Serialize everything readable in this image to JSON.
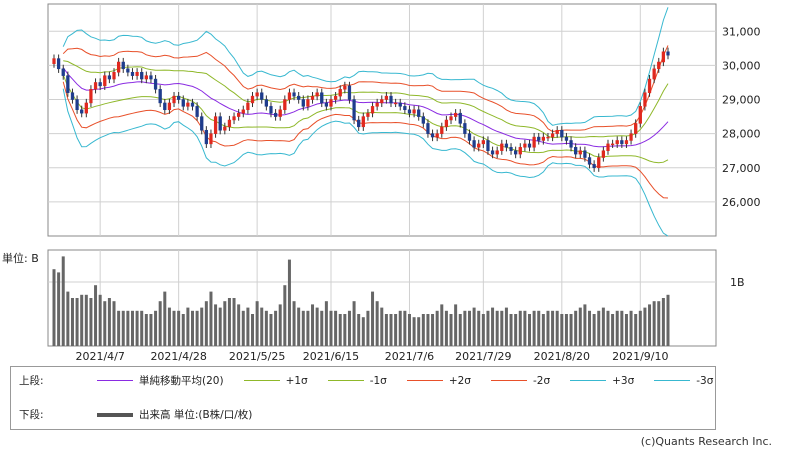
{
  "chart_data": [
    {
      "type": "candlestick",
      "x_ticks": [
        "2021/4/7",
        "2021/4/28",
        "2021/5/25",
        "2021/6/15",
        "2021/7/6",
        "2021/7/29",
        "2021/8/20",
        "2021/9/10"
      ],
      "y_ticks": [
        "31,000",
        "30,000",
        "29,000",
        "28,000",
        "27,000",
        "26,000"
      ],
      "ylim": [
        25000,
        31800
      ],
      "grid": true,
      "series": [
        {
          "name": "単純移動平均(20)",
          "color": "#8a2be2"
        },
        {
          "name": "+1σ",
          "color": "#8fb82a"
        },
        {
          "name": "-1σ",
          "color": "#8fb82a"
        },
        {
          "name": "+2σ",
          "color": "#e8502a"
        },
        {
          "name": "-2σ",
          "color": "#e8502a"
        },
        {
          "name": "+3σ",
          "color": "#38b8d0"
        },
        {
          "name": "-3σ",
          "color": "#38b8d0"
        }
      ],
      "close": [
        30200,
        29900,
        29700,
        29200,
        29000,
        28700,
        28600,
        28900,
        29300,
        29500,
        29400,
        29700,
        29600,
        29800,
        30100,
        29900,
        29800,
        29700,
        29800,
        29600,
        29700,
        29600,
        29300,
        28900,
        28700,
        28900,
        29100,
        29000,
        28800,
        28900,
        28800,
        28500,
        28100,
        27700,
        28000,
        28500,
        28100,
        28200,
        28400,
        28500,
        28600,
        28700,
        28900,
        29100,
        29200,
        29000,
        28800,
        28600,
        28500,
        28700,
        29000,
        29200,
        29100,
        29000,
        28800,
        29000,
        29100,
        29200,
        28900,
        28800,
        29000,
        29100,
        29300,
        29400,
        29000,
        28400,
        28200,
        28500,
        28600,
        28800,
        28900,
        29000,
        29100,
        28900,
        28900,
        28800,
        28700,
        28600,
        28700,
        28500,
        28300,
        28000,
        27900,
        28000,
        28200,
        28400,
        28500,
        28600,
        28300,
        28000,
        27800,
        27600,
        27700,
        27800,
        27500,
        27400,
        27500,
        27700,
        27600,
        27500,
        27400,
        27600,
        27700,
        27600,
        27900,
        27800,
        27900,
        27900,
        28000,
        28100,
        27900,
        27800,
        27600,
        27400,
        27500,
        27300,
        27100,
        27000,
        27300,
        27500,
        27700,
        27700,
        27800,
        27700,
        27800,
        28000,
        28300,
        28800,
        29200,
        29600,
        29900,
        30100,
        30400,
        30300
      ]
    },
    {
      "type": "bar",
      "title": "単位: B",
      "y_tick": "1B",
      "values": [
        1.2,
        1.15,
        1.4,
        0.85,
        0.75,
        0.75,
        0.8,
        0.8,
        0.75,
        0.95,
        0.8,
        0.7,
        0.75,
        0.7,
        0.55,
        0.55,
        0.55,
        0.55,
        0.55,
        0.55,
        0.5,
        0.5,
        0.55,
        0.7,
        0.85,
        0.6,
        0.55,
        0.55,
        0.5,
        0.6,
        0.55,
        0.55,
        0.6,
        0.7,
        0.85,
        0.65,
        0.6,
        0.7,
        0.75,
        0.75,
        0.65,
        0.55,
        0.6,
        0.5,
        0.7,
        0.6,
        0.55,
        0.5,
        0.55,
        0.65,
        0.95,
        1.35,
        0.7,
        0.6,
        0.55,
        0.55,
        0.65,
        0.6,
        0.55,
        0.7,
        0.55,
        0.55,
        0.5,
        0.5,
        0.55,
        0.7,
        0.5,
        0.45,
        0.55,
        0.85,
        0.7,
        0.6,
        0.5,
        0.5,
        0.5,
        0.55,
        0.55,
        0.5,
        0.45,
        0.45,
        0.5,
        0.5,
        0.5,
        0.55,
        0.65,
        0.55,
        0.5,
        0.65,
        0.5,
        0.55,
        0.55,
        0.6,
        0.55,
        0.5,
        0.55,
        0.6,
        0.55,
        0.55,
        0.6,
        0.5,
        0.5,
        0.55,
        0.55,
        0.5,
        0.55,
        0.55,
        0.5,
        0.55,
        0.55,
        0.55,
        0.5,
        0.5,
        0.5,
        0.55,
        0.6,
        0.65,
        0.55,
        0.5,
        0.55,
        0.6,
        0.55,
        0.5,
        0.55,
        0.55,
        0.5,
        0.55,
        0.5,
        0.55,
        0.6,
        0.65,
        0.7,
        0.7,
        0.75,
        0.8
      ]
    }
  ],
  "legend": {
    "upper_label": "上段:",
    "lower_label": "下段:",
    "upper_items": [
      "単純移動平均(20)",
      "+1σ",
      "-1σ",
      "+2σ",
      "-2σ",
      "+3σ",
      "-3σ"
    ],
    "lower_item": "出来高 単位:(B株/口/枚)"
  },
  "credit": "(c)Quants Research Inc."
}
